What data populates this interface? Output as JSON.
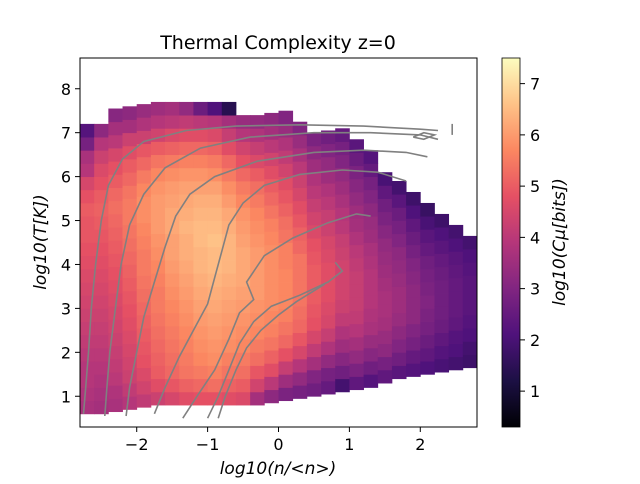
{
  "chart_data": {
    "type": "heatmap",
    "title": "Thermal Complexity z=0",
    "xlabel": "log10(n/<n>)",
    "ylabel": "log10(T[K])",
    "colorbar_label": "log10(Cμ[bits])",
    "colormap": "magma",
    "xlim": [
      -2.8,
      2.8
    ],
    "ylim": [
      0.3,
      8.7
    ],
    "clim": [
      0.3,
      7.5
    ],
    "x_ticks": [
      -2,
      -1,
      0,
      1,
      2
    ],
    "x_tick_labels": [
      "−2",
      "−1",
      "0",
      "1",
      "2"
    ],
    "y_ticks": [
      1,
      2,
      3,
      4,
      5,
      6,
      7,
      8
    ],
    "y_tick_labels": [
      "1",
      "2",
      "3",
      "4",
      "5",
      "6",
      "7",
      "8"
    ],
    "colorbar_ticks": [
      1,
      2,
      3,
      4,
      5,
      6,
      7
    ],
    "colorbar_tick_labels": [
      "1",
      "2",
      "3",
      "4",
      "5",
      "6",
      "7"
    ],
    "grid": false,
    "bins": {
      "x_start": -2.8,
      "x_step": 0.2,
      "y_start": 0.3,
      "y_step": 0.3
    },
    "columns": [
      {
        "y_top": 0.6,
        "values": [
          3.7,
          3.8,
          3.9,
          3.9,
          4.0,
          4.1,
          4.2,
          4.3,
          4.4,
          4.5,
          4.6,
          4.7,
          4.8,
          4.9,
          4.9,
          5.0,
          4.8,
          4.5,
          3.9,
          3.7,
          2.8,
          2.2
        ]
      },
      {
        "y_top": 0.6,
        "values": [
          3.6,
          3.7,
          3.8,
          3.9,
          4.0,
          4.1,
          4.2,
          4.3,
          4.4,
          4.5,
          4.6,
          4.7,
          4.8,
          4.9,
          5.0,
          5.1,
          5.0,
          4.8,
          4.6,
          4.3,
          3.9,
          3.2
        ]
      },
      {
        "y_top": 0.65,
        "values": [
          3.7,
          3.8,
          4.0,
          4.1,
          4.2,
          4.3,
          4.4,
          4.5,
          4.6,
          4.7,
          4.8,
          4.9,
          5.0,
          5.1,
          5.2,
          5.3,
          5.2,
          5.0,
          4.8,
          4.5,
          4.0,
          3.6,
          3.1
        ]
      },
      {
        "y_top": 0.7,
        "values": [
          3.9,
          4.1,
          4.3,
          4.4,
          4.5,
          4.6,
          4.7,
          4.8,
          4.9,
          5.0,
          5.1,
          5.2,
          5.3,
          5.4,
          5.5,
          5.5,
          5.4,
          5.2,
          5.0,
          4.7,
          4.3,
          3.6,
          3.2
        ]
      },
      {
        "y_top": 0.75,
        "values": [
          4.1,
          4.4,
          4.6,
          4.8,
          4.9,
          5.0,
          5.1,
          5.2,
          5.3,
          5.4,
          5.5,
          5.5,
          5.6,
          5.7,
          5.8,
          5.8,
          5.7,
          5.5,
          5.2,
          4.9,
          4.3,
          3.8,
          3.4
        ]
      },
      {
        "y_top": 0.8,
        "values": [
          4.3,
          4.7,
          5.0,
          5.1,
          5.2,
          5.3,
          5.4,
          5.5,
          5.5,
          5.6,
          5.7,
          5.8,
          5.9,
          6.0,
          6.0,
          6.0,
          5.9,
          5.7,
          5.4,
          5.0,
          4.4,
          3.9,
          3.5
        ]
      },
      {
        "y_top": 0.8,
        "values": [
          4.5,
          4.9,
          5.2,
          5.3,
          5.4,
          5.5,
          5.6,
          5.7,
          5.8,
          5.9,
          6.0,
          6.1,
          6.1,
          6.2,
          6.2,
          6.1,
          6.0,
          5.8,
          5.5,
          5.1,
          4.6,
          4.0,
          3.6
        ]
      },
      {
        "y_top": 0.8,
        "values": [
          4.7,
          5.1,
          5.4,
          5.5,
          5.6,
          5.7,
          5.8,
          5.9,
          6.0,
          6.1,
          6.2,
          6.3,
          6.3,
          6.4,
          6.3,
          6.2,
          6.1,
          5.9,
          5.6,
          5.2,
          4.7,
          4.1,
          3.3
        ]
      },
      {
        "y_top": 0.8,
        "values": [
          4.8,
          5.2,
          5.5,
          5.7,
          5.8,
          5.9,
          6.0,
          6.1,
          6.2,
          6.3,
          6.4,
          6.4,
          6.5,
          6.5,
          6.4,
          6.3,
          6.1,
          5.9,
          5.6,
          5.2,
          4.7,
          4.0,
          2.6
        ]
      },
      {
        "y_top": 0.8,
        "values": [
          4.8,
          5.3,
          5.6,
          5.8,
          5.9,
          6.0,
          6.1,
          6.2,
          6.3,
          6.4,
          6.5,
          6.5,
          6.6,
          6.5,
          6.4,
          6.3,
          6.1,
          5.8,
          5.5,
          5.1,
          4.6,
          3.9,
          2.1
        ]
      },
      {
        "y_top": 0.8,
        "values": [
          4.7,
          5.1,
          5.4,
          5.6,
          5.8,
          5.9,
          6.0,
          6.1,
          6.2,
          6.3,
          6.4,
          6.4,
          6.4,
          6.3,
          6.2,
          6.0,
          5.8,
          5.5,
          5.2,
          4.7,
          4.2,
          3.6,
          1.4
        ]
      },
      {
        "y_top": 0.8,
        "values": [
          4.6,
          5.0,
          5.3,
          5.5,
          5.7,
          5.8,
          5.9,
          6.0,
          6.1,
          6.2,
          6.2,
          6.2,
          6.1,
          6.0,
          5.9,
          5.7,
          5.5,
          5.2,
          4.8,
          4.4,
          3.9,
          3.4
        ]
      },
      {
        "y_top": 0.8,
        "values": [
          3.6,
          4.4,
          4.9,
          5.3,
          5.5,
          5.7,
          5.8,
          5.9,
          6.0,
          6.0,
          6.0,
          6.0,
          5.9,
          5.8,
          5.7,
          5.5,
          5.3,
          5.0,
          4.6,
          4.2,
          3.8,
          3.3
        ]
      },
      {
        "y_top": 0.85,
        "values": [
          3.2,
          4.0,
          4.7,
          5.1,
          5.4,
          5.6,
          5.7,
          5.8,
          5.8,
          5.8,
          5.8,
          5.8,
          5.7,
          5.6,
          5.4,
          5.2,
          5.0,
          4.7,
          4.4,
          4.0,
          3.6,
          3.2
        ]
      },
      {
        "y_top": 0.9,
        "values": [
          2.9,
          3.5,
          4.2,
          4.8,
          5.2,
          5.4,
          5.6,
          5.7,
          5.7,
          5.7,
          5.6,
          5.6,
          5.4,
          5.3,
          5.1,
          4.9,
          4.7,
          4.4,
          4.1,
          3.8,
          3.4,
          3.0
        ]
      },
      {
        "y_top": 0.95,
        "values": [
          2.8,
          3.3,
          3.9,
          4.5,
          4.9,
          5.2,
          5.3,
          5.4,
          5.4,
          5.4,
          5.4,
          5.2,
          5.1,
          4.9,
          4.7,
          4.5,
          4.3,
          4.0,
          3.7,
          3.4,
          3.0
        ]
      },
      {
        "y_top": 1.0,
        "values": [
          2.7,
          3.0,
          3.6,
          4.1,
          4.5,
          4.8,
          4.9,
          5.0,
          5.0,
          5.0,
          4.9,
          4.8,
          4.6,
          4.4,
          4.2,
          4.0,
          3.8,
          3.5,
          3.2,
          2.9
        ]
      },
      {
        "y_top": 1.05,
        "values": [
          2.5,
          2.8,
          3.3,
          3.8,
          4.2,
          4.5,
          4.6,
          4.7,
          4.7,
          4.7,
          4.6,
          4.5,
          4.3,
          4.2,
          4.0,
          3.8,
          3.5,
          3.3,
          3.0,
          2.7
        ]
      },
      {
        "y_top": 1.1,
        "values": [
          1.9,
          2.7,
          3.1,
          3.5,
          3.8,
          4.1,
          4.3,
          4.4,
          4.4,
          4.4,
          4.3,
          4.2,
          4.0,
          3.9,
          3.7,
          3.5,
          3.3,
          3.0,
          2.8,
          2.5
        ]
      },
      {
        "y_top": 1.15,
        "values": [
          2.4,
          2.9,
          3.3,
          3.6,
          3.9,
          4.1,
          4.2,
          4.2,
          4.2,
          4.1,
          4.0,
          3.8,
          3.6,
          3.5,
          3.3,
          3.1,
          2.9,
          2.6,
          2.3
        ]
      },
      {
        "y_top": 1.2,
        "values": [
          2.2,
          2.7,
          3.1,
          3.4,
          3.7,
          3.8,
          3.9,
          3.9,
          3.9,
          3.8,
          3.7,
          3.5,
          3.4,
          3.2,
          3.0,
          2.8,
          2.5,
          2.2
        ]
      },
      {
        "y_top": 1.3,
        "values": [
          2.4,
          2.8,
          3.2,
          3.4,
          3.6,
          3.7,
          3.7,
          3.6,
          3.5,
          3.4,
          3.3,
          3.1,
          2.9,
          2.7,
          2.4,
          2.0
        ]
      },
      {
        "y_top": 1.4,
        "values": [
          2.3,
          2.7,
          3.0,
          3.2,
          3.4,
          3.5,
          3.5,
          3.4,
          3.3,
          3.2,
          3.0,
          2.8,
          2.6,
          2.3,
          1.9
        ]
      },
      {
        "y_top": 1.45,
        "values": [
          2.2,
          2.5,
          2.8,
          3.0,
          3.2,
          3.2,
          3.2,
          3.1,
          3.0,
          2.8,
          2.6,
          2.4,
          2.1,
          1.8
        ]
      },
      {
        "y_top": 1.5,
        "values": [
          2.1,
          2.4,
          2.6,
          2.8,
          2.9,
          3.0,
          2.9,
          2.8,
          2.7,
          2.5,
          2.3,
          2.0,
          1.7
        ]
      },
      {
        "y_top": 1.55,
        "values": [
          2.0,
          2.2,
          2.4,
          2.6,
          2.7,
          2.7,
          2.7,
          2.6,
          2.5,
          2.3,
          2.1,
          1.8
        ]
      },
      {
        "y_top": 1.6,
        "values": [
          1.9,
          2.1,
          2.2,
          2.4,
          2.5,
          2.5,
          2.5,
          2.4,
          2.3,
          2.1,
          1.9
        ]
      },
      {
        "y_top": 1.65,
        "values": [
          1.8,
          1.9,
          2.1,
          2.2,
          2.3,
          2.3,
          2.3,
          2.2,
          2.1,
          1.9
        ]
      }
    ],
    "contours": [
      [
        [
          -2.75,
          0.6
        ],
        [
          -2.72,
          1.2
        ],
        [
          -2.68,
          2.0
        ],
        [
          -2.64,
          3.0
        ],
        [
          -2.58,
          4.0
        ],
        [
          -2.5,
          5.0
        ],
        [
          -2.4,
          5.8
        ],
        [
          -2.2,
          6.4
        ],
        [
          -1.9,
          6.8
        ],
        [
          -1.3,
          7.05
        ],
        [
          -0.6,
          7.15
        ],
        [
          0.3,
          7.18
        ],
        [
          1.2,
          7.15
        ],
        [
          2.0,
          7.08
        ],
        [
          2.25,
          7.05
        ]
      ],
      [
        [
          -2.45,
          0.55
        ],
        [
          -2.42,
          1.2
        ],
        [
          -2.38,
          2.0
        ],
        [
          -2.3,
          3.0
        ],
        [
          -2.22,
          4.0
        ],
        [
          -2.1,
          4.9
        ],
        [
          -1.9,
          5.6
        ],
        [
          -1.6,
          6.2
        ],
        [
          -1.1,
          6.65
        ],
        [
          -0.4,
          6.9
        ],
        [
          0.5,
          7.0
        ],
        [
          1.3,
          7.0
        ],
        [
          2.0,
          6.95
        ],
        [
          2.25,
          6.85
        ]
      ],
      [
        [
          -2.15,
          0.55
        ],
        [
          -2.1,
          1.2
        ],
        [
          -2.0,
          2.0
        ],
        [
          -1.9,
          2.8
        ],
        [
          -1.75,
          3.6
        ],
        [
          -1.6,
          4.4
        ],
        [
          -1.45,
          5.1
        ],
        [
          -1.25,
          5.6
        ],
        [
          -0.9,
          6.0
        ],
        [
          -0.3,
          6.35
        ],
        [
          0.5,
          6.55
        ],
        [
          1.2,
          6.6
        ],
        [
          1.8,
          6.55
        ],
        [
          2.1,
          6.45
        ]
      ],
      [
        [
          -1.75,
          0.6
        ],
        [
          -1.6,
          1.2
        ],
        [
          -1.4,
          1.9
        ],
        [
          -1.2,
          2.5
        ],
        [
          -1.0,
          3.1
        ],
        [
          -0.9,
          3.7
        ],
        [
          -0.8,
          4.3
        ],
        [
          -0.7,
          4.9
        ],
        [
          -0.5,
          5.4
        ],
        [
          -0.2,
          5.8
        ],
        [
          0.3,
          6.05
        ],
        [
          0.9,
          6.15
        ],
        [
          1.4,
          6.1
        ],
        [
          1.8,
          5.9
        ]
      ],
      [
        [
          -1.35,
          0.5
        ],
        [
          -1.15,
          1.0
        ],
        [
          -0.9,
          1.6
        ],
        [
          -0.7,
          2.3
        ],
        [
          -0.55,
          2.9
        ],
        [
          -0.35,
          3.2
        ],
        [
          -0.45,
          3.6
        ],
        [
          -0.2,
          4.2
        ],
        [
          0.2,
          4.6
        ],
        [
          0.7,
          4.95
        ],
        [
          1.1,
          5.15
        ],
        [
          1.3,
          5.1
        ]
      ],
      [
        [
          -1.0,
          0.5
        ],
        [
          -0.85,
          1.0
        ],
        [
          -0.7,
          1.6
        ],
        [
          -0.55,
          2.2
        ],
        [
          -0.35,
          2.7
        ],
        [
          -0.1,
          3.05
        ],
        [
          0.3,
          3.3
        ],
        [
          0.7,
          3.6
        ],
        [
          0.9,
          3.85
        ],
        [
          0.8,
          4.05
        ]
      ],
      [
        [
          -0.85,
          0.5
        ],
        [
          -0.75,
          1.0
        ],
        [
          -0.6,
          1.6
        ],
        [
          -0.45,
          2.1
        ],
        [
          -0.25,
          2.5
        ],
        [
          0.0,
          2.85
        ],
        [
          0.25,
          3.15
        ],
        [
          0.5,
          3.4
        ],
        [
          0.65,
          3.55
        ]
      ],
      [
        [
          1.9,
          6.9
        ],
        [
          2.05,
          7.0
        ],
        [
          2.2,
          6.95
        ],
        [
          2.05,
          6.85
        ],
        [
          1.9,
          6.9
        ]
      ],
      [
        [
          2.45,
          6.95
        ],
        [
          2.45,
          7.2
        ]
      ]
    ]
  }
}
